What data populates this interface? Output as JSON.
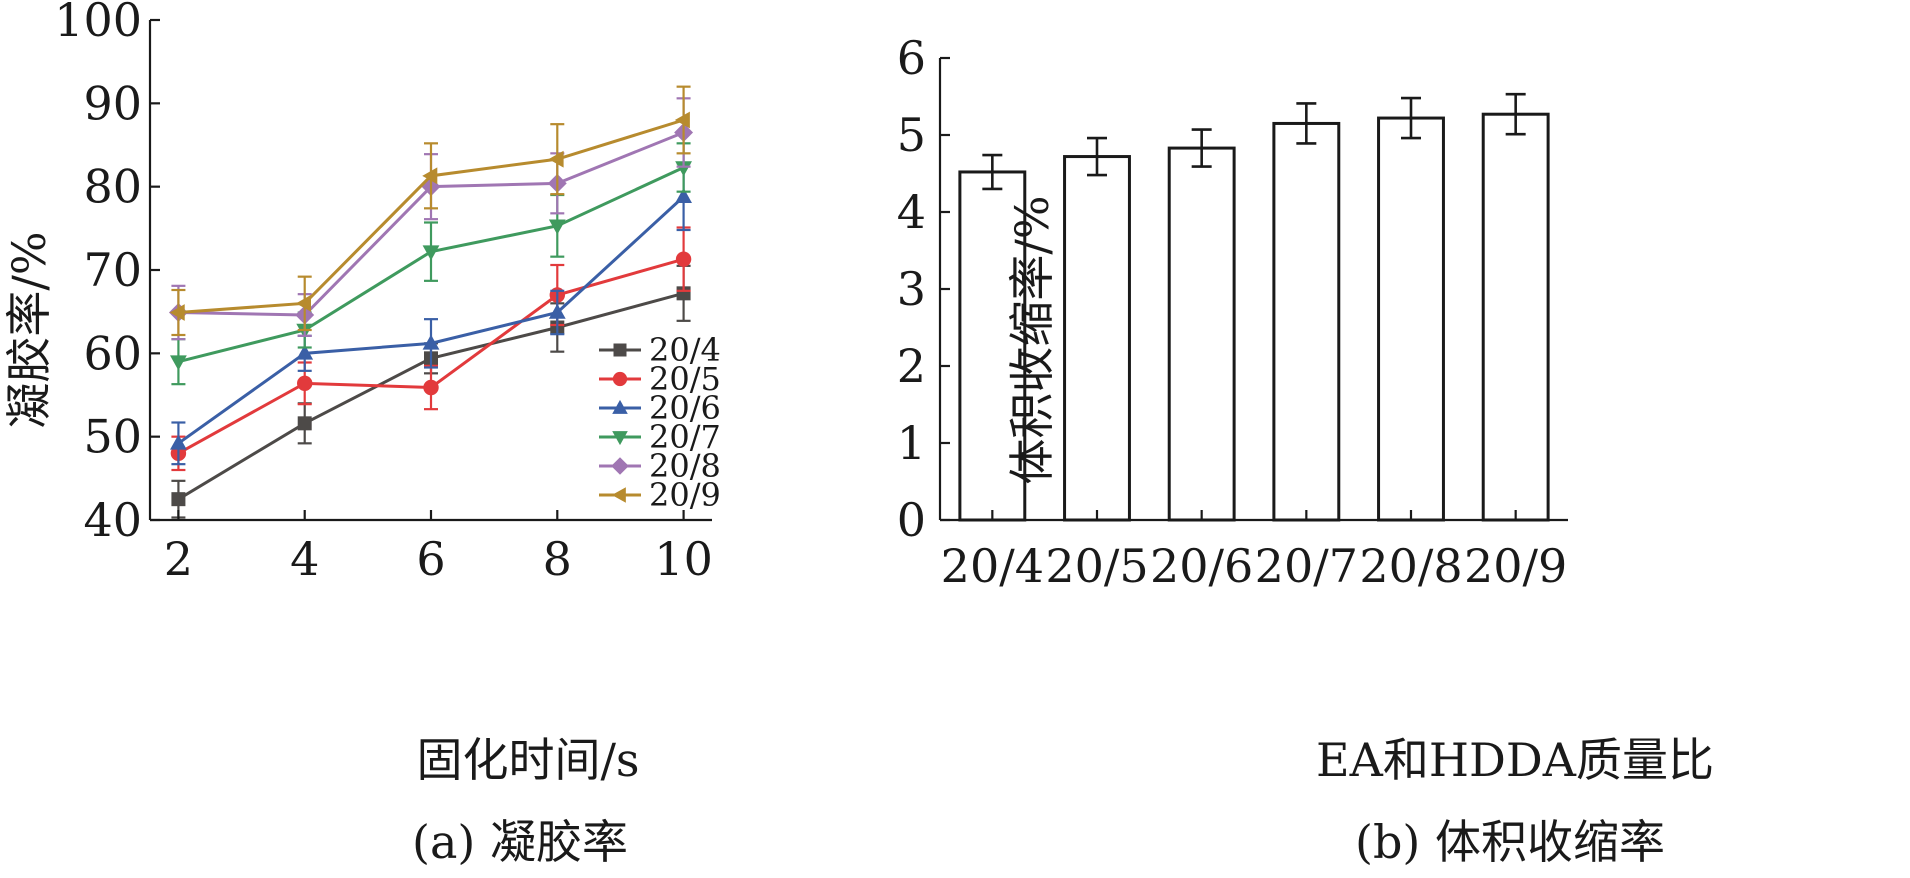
{
  "chart_data": [
    {
      "type": "line",
      "caption": "(a) 凝胶率",
      "xlabel": "固化时间/s",
      "ylabel": "凝胶率/%",
      "x": [
        2,
        4,
        6,
        8,
        10
      ],
      "xticks": [
        "2",
        "4",
        "6",
        "8",
        "10"
      ],
      "ylim": [
        40,
        100
      ],
      "yticks": [
        "40",
        "50",
        "60",
        "70",
        "80",
        "90",
        "100"
      ],
      "legend_position": "right",
      "series": [
        {
          "name": "20/4",
          "color": "#4d4a48",
          "marker": "square",
          "values": [
            42.5,
            51.6,
            59.4,
            63.1,
            67.2
          ],
          "errors": [
            2.2,
            2.4,
            1.8,
            2.9,
            3.3
          ]
        },
        {
          "name": "20/5",
          "color": "#e23a3c",
          "marker": "circle",
          "values": [
            48.0,
            56.4,
            55.9,
            67.0,
            71.3
          ],
          "errors": [
            2.0,
            2.5,
            2.6,
            3.6,
            3.8
          ]
        },
        {
          "name": "20/6",
          "color": "#3a5fa6",
          "marker": "triangle-up",
          "values": [
            49.2,
            60.0,
            61.2,
            64.9,
            78.8
          ],
          "errors": [
            2.5,
            2.1,
            2.9,
            2.6,
            4.0
          ]
        },
        {
          "name": "20/7",
          "color": "#3f9a5e",
          "marker": "triangle-down",
          "values": [
            59.0,
            62.8,
            72.2,
            75.3,
            82.3
          ],
          "errors": [
            2.7,
            2.1,
            3.5,
            3.7,
            2.9
          ]
        },
        {
          "name": "20/8",
          "color": "#a076b3",
          "marker": "diamond",
          "values": [
            64.9,
            64.6,
            80.0,
            80.4,
            86.5
          ],
          "errors": [
            3.2,
            2.5,
            3.9,
            3.6,
            4.1
          ]
        },
        {
          "name": "20/9",
          "color": "#b78b2e",
          "marker": "triangle-left",
          "values": [
            64.9,
            66.0,
            81.3,
            83.3,
            88.0
          ],
          "errors": [
            2.7,
            3.2,
            3.9,
            4.2,
            4.0
          ]
        }
      ]
    },
    {
      "type": "bar",
      "caption": "(b) 体积收缩率",
      "xlabel": "EA和HDDA质量比",
      "ylabel": "体积收缩率/%",
      "categories": [
        "20/4",
        "20/5",
        "20/6",
        "20/7",
        "20/8",
        "20/9"
      ],
      "values": [
        4.52,
        4.72,
        4.83,
        5.15,
        5.22,
        5.27
      ],
      "errors": [
        0.22,
        0.24,
        0.24,
        0.26,
        0.26,
        0.26
      ],
      "ylim": [
        0,
        6
      ],
      "yticks": [
        "0",
        "1",
        "2",
        "3",
        "4",
        "5",
        "6"
      ]
    }
  ]
}
